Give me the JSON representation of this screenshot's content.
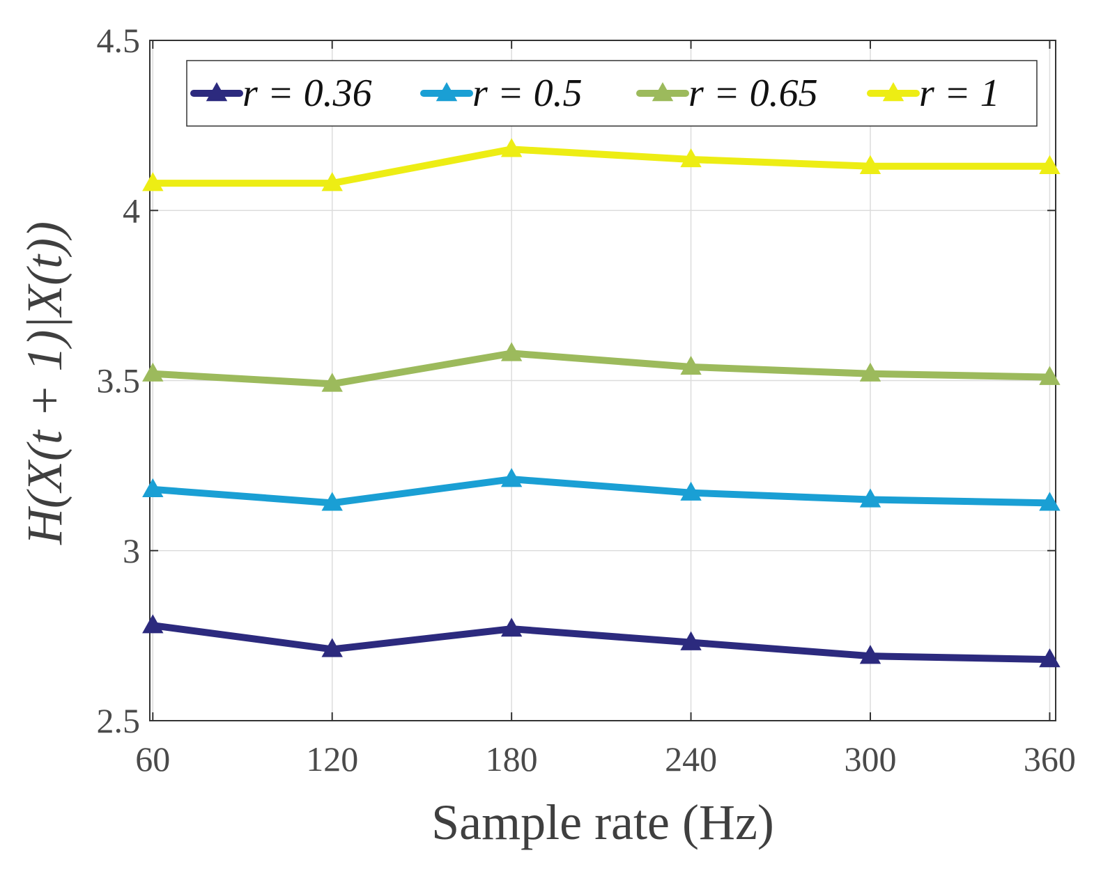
{
  "chart_data": {
    "type": "line",
    "title": "",
    "xlabel": "Sample rate (Hz)",
    "ylabel": "H(X(t + 1)|X(t))",
    "x": [
      60,
      120,
      180,
      240,
      300,
      360
    ],
    "x_tick_labels": [
      "60",
      "120",
      "180",
      "240",
      "300",
      "360"
    ],
    "y_tick_labels": [
      "2.5",
      "3",
      "3.5",
      "4",
      "4.5"
    ],
    "y_ticks": [
      2.5,
      3,
      3.5,
      4,
      4.5
    ],
    "xlim": [
      59,
      362
    ],
    "ylim": [
      2.5,
      4.5
    ],
    "grid": true,
    "legend_position": "top",
    "marker": "triangle",
    "series": [
      {
        "name": "r = 0.36",
        "color": "#2c2a7e",
        "values": [
          2.78,
          2.71,
          2.77,
          2.73,
          2.69,
          2.68
        ]
      },
      {
        "name": "r = 0.5",
        "color": "#1a9fd4",
        "values": [
          3.18,
          3.14,
          3.21,
          3.17,
          3.15,
          3.14
        ]
      },
      {
        "name": "r = 0.65",
        "color": "#9cba5c",
        "values": [
          3.52,
          3.49,
          3.58,
          3.54,
          3.52,
          3.51
        ]
      },
      {
        "name": "r = 1",
        "color": "#eded14",
        "values": [
          4.08,
          4.08,
          4.18,
          4.15,
          4.13,
          4.13
        ]
      }
    ]
  }
}
